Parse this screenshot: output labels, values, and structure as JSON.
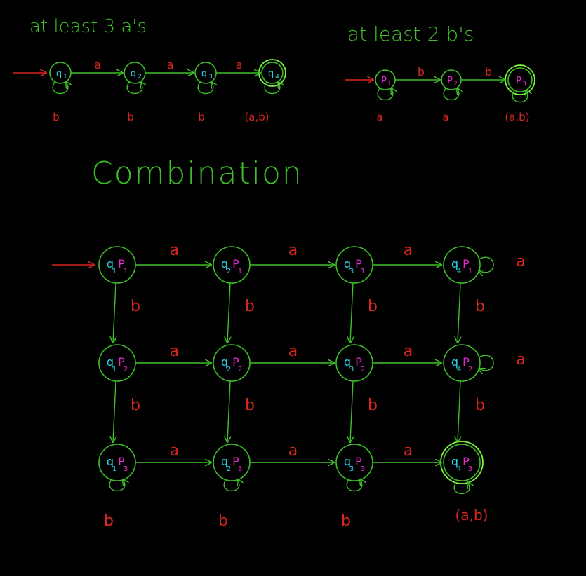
{
  "titles": {
    "dfa_a": "at least 3 a's",
    "dfa_b": "at least 2 b's",
    "combination": "Combination"
  },
  "colors": {
    "background": "#000000",
    "edges": "#3fbf2a",
    "labels": "#d8261f",
    "q_states": "#2ad4e6",
    "p_states": "#e62ad2"
  },
  "dfa_a": {
    "states": [
      {
        "name": "q",
        "sub": "1",
        "accept": false
      },
      {
        "name": "q",
        "sub": "2",
        "accept": false
      },
      {
        "name": "q",
        "sub": "3",
        "accept": false
      },
      {
        "name": "q",
        "sub": "4",
        "accept": true
      }
    ],
    "transition_labels": [
      "a",
      "a",
      "a"
    ],
    "loop_labels": [
      "b",
      "b",
      "b",
      "(a,b)"
    ]
  },
  "dfa_b": {
    "states": [
      {
        "name": "P",
        "sub": "1",
        "accept": false
      },
      {
        "name": "P",
        "sub": "2",
        "accept": false
      },
      {
        "name": "P",
        "sub": "3",
        "accept": true
      }
    ],
    "transition_labels": [
      "b",
      "b"
    ],
    "loop_labels": [
      "a",
      "a",
      "(a,b)"
    ]
  },
  "product": {
    "rows": [
      {
        "p": "1",
        "row_labels": [
          "a",
          "a",
          "a"
        ],
        "end_loop": "a"
      },
      {
        "p": "2",
        "row_labels": [
          "a",
          "a",
          "a"
        ],
        "end_loop": "a"
      },
      {
        "p": "3",
        "row_labels": [
          "a",
          "a",
          "a"
        ],
        "end_loop": "(a,b)"
      }
    ],
    "cols": [
      "1",
      "2",
      "3",
      "4"
    ],
    "down_labels": [
      [
        "b",
        "b",
        "b",
        "b"
      ],
      [
        "b",
        "b",
        "b",
        "b"
      ]
    ],
    "bottom_loops": [
      "b",
      "b",
      "b"
    ],
    "accept": {
      "row": 2,
      "col": 3
    }
  }
}
